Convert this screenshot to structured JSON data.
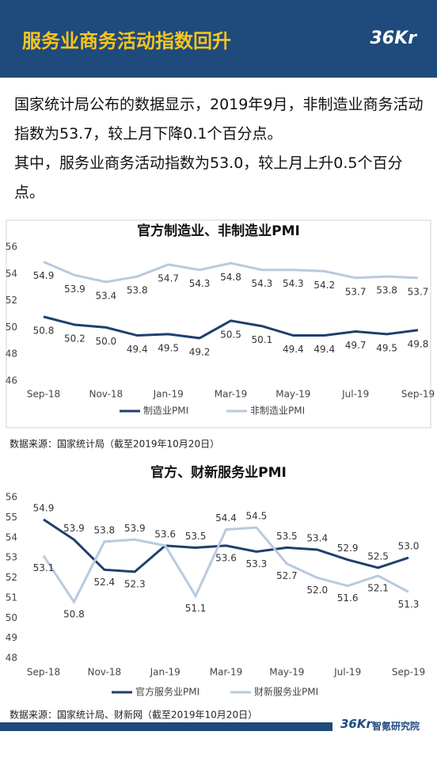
{
  "header": {
    "title": "服务业商务活动指数回升",
    "logo": "36Kr"
  },
  "paragraphs": [
    "国家统计局公布的数据显示，2019年9月，非制造业商务活动指数为53.7，较上月下降0.1个百分点。",
    "其中，服务业商务活动指数为53.0，较上月上升0.5个百分点。"
  ],
  "chart_data": [
    {
      "type": "line",
      "title": "官方制造业、非制造业PMI",
      "categories": [
        "Sep-18",
        null,
        "Nov-18",
        null,
        "Jan-19",
        null,
        "Mar-19",
        null,
        "May-19",
        null,
        "Jul-19",
        null,
        "Sep-19"
      ],
      "series": [
        {
          "name": "制造业PMI",
          "color": "#1f3f6e",
          "values": [
            50.8,
            50.2,
            50.0,
            49.4,
            49.5,
            49.2,
            50.5,
            50.1,
            49.4,
            49.4,
            49.7,
            49.5,
            49.8
          ],
          "value_labels": [
            "50.8",
            "50.2",
            "50.0",
            "49.4",
            "49.5",
            "49.2",
            "50.5",
            "50.1",
            "49.4",
            "49.4",
            "49.7",
            "49.5",
            "49.8"
          ]
        },
        {
          "name": "非制造业PMI",
          "color": "#b9cade",
          "values": [
            54.9,
            53.9,
            53.4,
            53.8,
            54.7,
            54.3,
            54.8,
            54.3,
            54.3,
            54.2,
            53.7,
            53.8,
            53.7
          ],
          "value_labels": [
            "54.9",
            "53.9",
            "53.4",
            "53.8",
            "54.7",
            "54.3",
            "54.8",
            "54.3",
            "54.3",
            "54.2",
            "53.7",
            "53.8",
            "53.7"
          ]
        }
      ],
      "ylim": [
        46,
        56
      ],
      "yticks": [
        46,
        48,
        50,
        52,
        54,
        56
      ],
      "grid": false,
      "legend": "bottom",
      "source": "数据来源：国家统计局（截至2019年10月20日）"
    },
    {
      "type": "line",
      "title": "官方、财新服务业PMI",
      "categories": [
        "Sep-18",
        null,
        "Nov-18",
        null,
        "Jan-19",
        null,
        "Mar-19",
        null,
        "May-19",
        null,
        "Jul-19",
        null,
        "Sep-19"
      ],
      "series": [
        {
          "name": "官方服务业PMI",
          "color": "#1f3f6e",
          "values": [
            54.9,
            53.9,
            52.4,
            52.3,
            53.6,
            53.5,
            53.6,
            53.3,
            53.5,
            53.4,
            52.9,
            52.5,
            53.0
          ],
          "value_labels": [
            "54.9",
            "53.9",
            "52.4",
            "52.3",
            "53.6",
            "53.5",
            "53.6",
            "53.3",
            "53.5",
            "53.4",
            "52.9",
            "52.5",
            "53.0"
          ]
        },
        {
          "name": "财新服务业PMI",
          "color": "#b9cade",
          "values": [
            53.1,
            50.8,
            53.8,
            53.9,
            53.6,
            51.1,
            54.4,
            54.5,
            52.7,
            52.0,
            51.6,
            52.1,
            51.3
          ],
          "value_labels": [
            "53.1",
            "50.8",
            "53.8",
            "53.9",
            null,
            "51.1",
            "54.4",
            "54.5",
            "52.7",
            "52.0",
            "51.6",
            "52.1",
            "51.3"
          ]
        }
      ],
      "ylim": [
        48,
        56
      ],
      "yticks": [
        48,
        49,
        50,
        51,
        52,
        53,
        54,
        55,
        56
      ],
      "grid": false,
      "legend": "bottom",
      "source": "数据来源：国家统计局、财新网（截至2019年10月20日）"
    }
  ],
  "footer": {
    "logo": "36Kr",
    "text": "智氪研究院"
  }
}
